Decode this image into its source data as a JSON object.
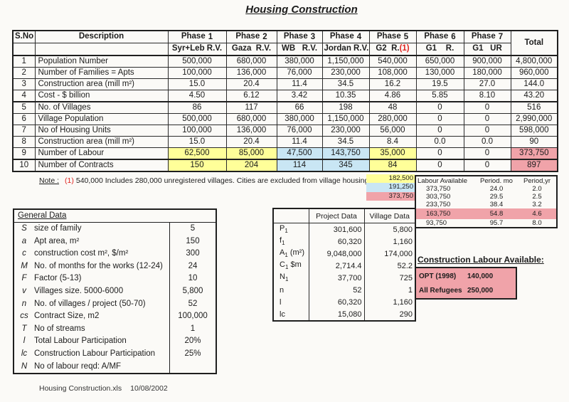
{
  "title": "Housing Construction",
  "colors": {
    "yellow": "#ffff99",
    "blue": "#c9e6f4",
    "pink": "#f0a3a9",
    "red": "#e02420"
  },
  "main_table": {
    "col_headers": {
      "sno": "S.No",
      "description": "Description",
      "total": "Total",
      "phases": [
        {
          "label": "Phase",
          "num": "1",
          "region": "Syr+Leb R.V."
        },
        {
          "label": "Phase",
          "num": "2",
          "region": "Gaza  R.V."
        },
        {
          "label": "Phase",
          "num": "3",
          "region": "WB   R.V."
        },
        {
          "label": "Phase",
          "num": "4",
          "region": "Jordan R.V."
        },
        {
          "label": "Phase",
          "num": "5",
          "region": "G2  R.",
          "ref": "(1)"
        },
        {
          "label": "Phase",
          "num": "6",
          "region": "G1    R."
        },
        {
          "label": "Phase",
          "num": "7",
          "region": "G1   UR"
        }
      ]
    },
    "rows": [
      {
        "no": "1",
        "desc": "Population Number",
        "values": [
          "500,000",
          "680,000",
          "380,000",
          "1,150,000",
          "540,000",
          "650,000",
          "900,000",
          "4,800,000"
        ]
      },
      {
        "no": "2",
        "desc": "Number of Families = Apts",
        "values": [
          "100,000",
          "136,000",
          "76,000",
          "230,000",
          "108,000",
          "130,000",
          "180,000",
          "960,000"
        ]
      },
      {
        "no": "3",
        "desc": "Construction area (mill m²)",
        "values": [
          "15.0",
          "20.4",
          "11.4",
          "34.5",
          "16.2",
          "19.5",
          "27.0",
          "144.0"
        ]
      },
      {
        "no": "4",
        "desc": "Cost - $ billion",
        "values": [
          "4.50",
          "6.12",
          "3.42",
          "10.35",
          "4.86",
          "5.85",
          "8.10",
          "43.20"
        ],
        "section_end": true
      },
      {
        "no": "5",
        "desc": "No. of Villages",
        "values": [
          "86",
          "117",
          "66",
          "198",
          "48",
          "0",
          "0",
          "516"
        ]
      },
      {
        "no": "6",
        "desc": "Village Population",
        "values": [
          "500,000",
          "680,000",
          "380,000",
          "1,150,000",
          "280,000",
          "0",
          "0",
          "2,990,000"
        ]
      },
      {
        "no": "7",
        "desc": "No of Housing Units",
        "values": [
          "100,000",
          "136,000",
          "76,000",
          "230,000",
          "56,000",
          "0",
          "0",
          "598,000"
        ]
      },
      {
        "no": "8",
        "desc": "Construction area (mill m²)",
        "values": [
          "15.0",
          "20.4",
          "11.4",
          "34.5",
          "8.4",
          "0.0",
          "0.0",
          "90"
        ]
      },
      {
        "no": "9",
        "desc": "Number of Labour",
        "values": [
          "62,500",
          "85,000",
          "47,500",
          "143,750",
          "35,000",
          "0",
          "0",
          "373,750"
        ],
        "hl": [
          "y",
          "y",
          "b",
          "b",
          "y",
          "",
          "",
          "p"
        ],
        "section_end": true
      },
      {
        "no": "10",
        "desc": "Number of Contracts",
        "values": [
          "150",
          "204",
          "114",
          "345",
          "84",
          "0",
          "0",
          "897"
        ],
        "hl": [
          "y",
          "y",
          "b",
          "b",
          "y",
          "",
          "",
          "p"
        ]
      }
    ]
  },
  "note": {
    "label": "Note :",
    "ref": "(1)",
    "text": "540,000 Includes 280,000 unregistered villages. Cities are excluded from village housing."
  },
  "legend": {
    "items": [
      {
        "name": "yellow-phases-total",
        "color_key": "yellow",
        "value": "182,500"
      },
      {
        "name": "blue-phases-total",
        "color_key": "blue",
        "value": "191,250"
      },
      {
        "name": "grand-total",
        "color_key": "pink",
        "value": "373,750"
      }
    ]
  },
  "labour_table": {
    "headers": [
      "Labour Available",
      "Period. mo",
      "Period,yr"
    ],
    "rows": [
      {
        "labour": "373,750",
        "mo": "24.0",
        "yr": "2.0"
      },
      {
        "labour": "303,750",
        "mo": "29.5",
        "yr": "2.5"
      },
      {
        "labour": "233,750",
        "mo": "38.4",
        "yr": "3.2"
      },
      {
        "labour": "163,750",
        "mo": "54.8",
        "yr": "4.6",
        "hl": "p"
      },
      {
        "labour": "93,750",
        "mo": "95.7",
        "yr": "8.0"
      }
    ]
  },
  "general_data": {
    "title": "General Data",
    "rows": [
      {
        "sym": "S",
        "label": "size of family",
        "value": "5"
      },
      {
        "sym": "a",
        "label": "Apt area, m²",
        "value": "150"
      },
      {
        "sym": "c",
        "label": "construction cost m², $/m²",
        "value": "300"
      },
      {
        "sym": "M",
        "label": "No. of months for the works (12-24)",
        "value": "24"
      },
      {
        "sym": "F",
        "label": "Factor (5-13)",
        "value": "10"
      },
      {
        "sym": "v",
        "label": "Villages size. 5000-6000",
        "value": "5,800"
      },
      {
        "sym": "n",
        "label": "No. of villages / project (50-70)",
        "value": "52"
      },
      {
        "sym": "cs",
        "label": "Contract Size, m2",
        "value": "100,000"
      },
      {
        "sym": "T",
        "label": "No of streams",
        "value": "1"
      },
      {
        "sym": "l",
        "label": "Total Labour Participation",
        "value": "20%"
      },
      {
        "sym": "lc",
        "label": "Construction Labour Participation",
        "value": "25%"
      },
      {
        "sym": "N",
        "label": "No of labour reqd: A/MF",
        "value": ""
      }
    ]
  },
  "project_table": {
    "headers": {
      "col1": "",
      "col2": "Project Data",
      "col3": "Village Data"
    },
    "rows": [
      {
        "sym": "P",
        "sub": "1",
        "suffix": "",
        "project": "301,600",
        "village": "5,800"
      },
      {
        "sym": "f",
        "sub": "1",
        "suffix": "",
        "project": "60,320",
        "village": "1,160"
      },
      {
        "sym": "A",
        "sub": "1",
        "suffix": " (m²)",
        "project": "9,048,000",
        "village": "174,000"
      },
      {
        "sym": "C",
        "sub": "1",
        "suffix": " $m",
        "project": "2,714.4",
        "village": "52.2"
      },
      {
        "sym": "N",
        "sub": "1",
        "suffix": "",
        "project": "37,700",
        "village": "725"
      },
      {
        "sym": "n",
        "sub": "",
        "suffix": "",
        "project": "52",
        "village": "1"
      },
      {
        "sym": "l",
        "sub": "",
        "suffix": "",
        "project": "60,320",
        "village": "1,160"
      },
      {
        "sym": "lc",
        "sub": "",
        "suffix": "",
        "project": "15,080",
        "village": "290"
      }
    ]
  },
  "construction_labour": {
    "title": "Construction Labour Available:",
    "rows": [
      {
        "label": "OPT (1998)",
        "value": "140,000"
      },
      {
        "label": "All Refugees",
        "value": "250,000"
      }
    ]
  },
  "footer": {
    "filename": "Housing Construction.xls",
    "date": "10/08/2002"
  }
}
